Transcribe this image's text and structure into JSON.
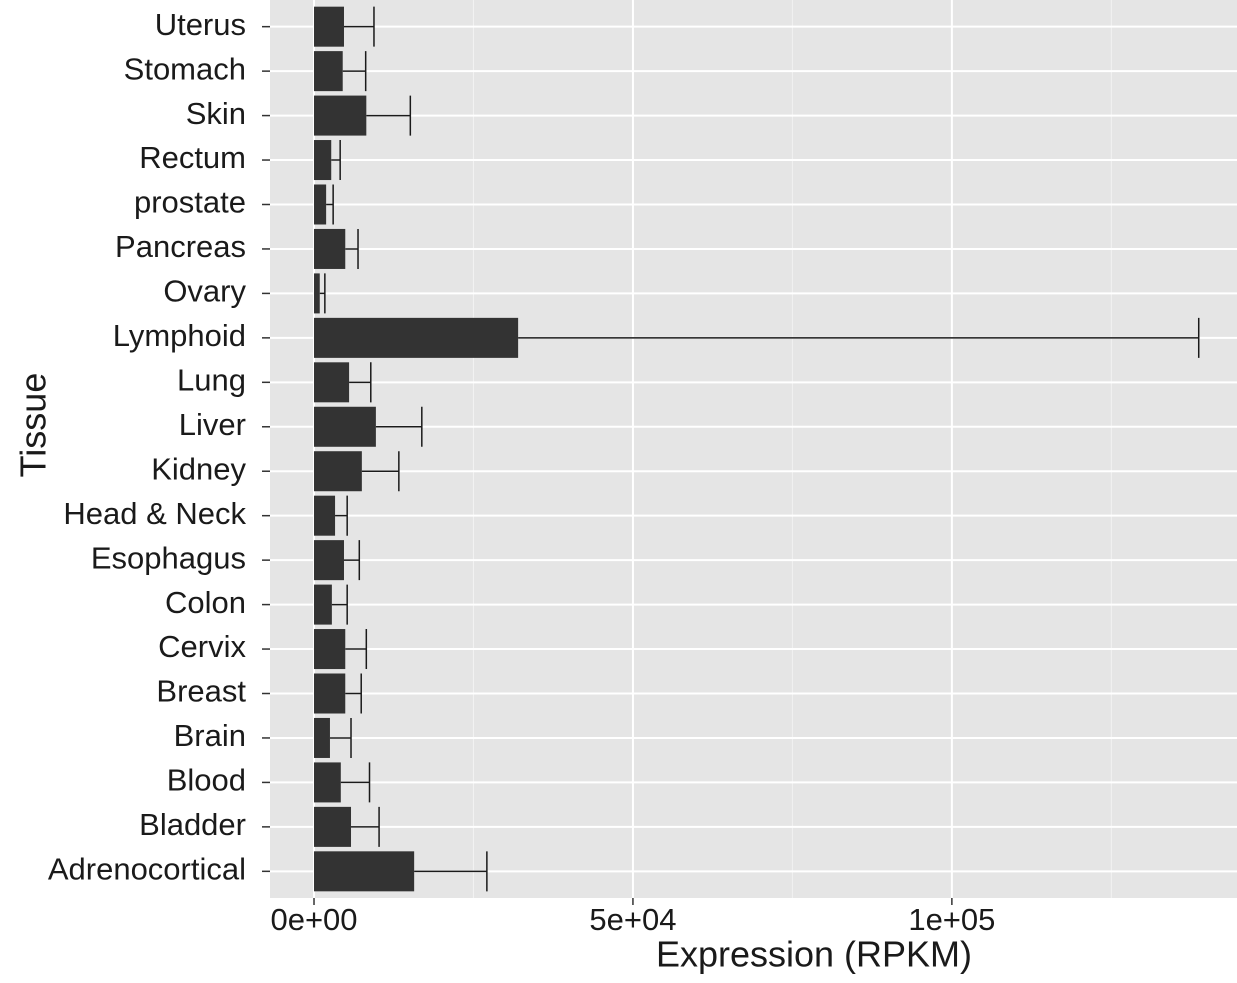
{
  "chart_data": {
    "type": "bar",
    "orientation": "horizontal",
    "x_label": "Expression (RPKM)",
    "y_label": "Tissue",
    "categories": [
      "Adrenocortical",
      "Bladder",
      "Blood",
      "Brain",
      "Breast",
      "Cervix",
      "Colon",
      "Esophagus",
      "Head & Neck",
      "Kidney",
      "Liver",
      "Lung",
      "Lymphoid",
      "Ovary",
      "Pancreas",
      "prostate",
      "Rectum",
      "Skin",
      "Stomach",
      "Uterus"
    ],
    "values": [
      15700,
      5800,
      4200,
      2500,
      4900,
      4900,
      2800,
      4700,
      3300,
      7500,
      9700,
      5500,
      32000,
      900,
      4900,
      1900,
      2700,
      8200,
      4500,
      4700
    ],
    "errors": [
      11400,
      4400,
      4500,
      3300,
      2500,
      3300,
      2400,
      2400,
      1900,
      5800,
      7200,
      3400,
      106700,
      800,
      2000,
      1100,
      1400,
      6900,
      3600,
      4700
    ],
    "color": "#333333",
    "xlim": [
      -6900,
      144700
    ],
    "xticks": [
      {
        "value": 0,
        "label": "0e+00"
      },
      {
        "value": 50000,
        "label": "5e+04"
      },
      {
        "value": 100000,
        "label": "1e+05"
      }
    ],
    "grid": true
  }
}
